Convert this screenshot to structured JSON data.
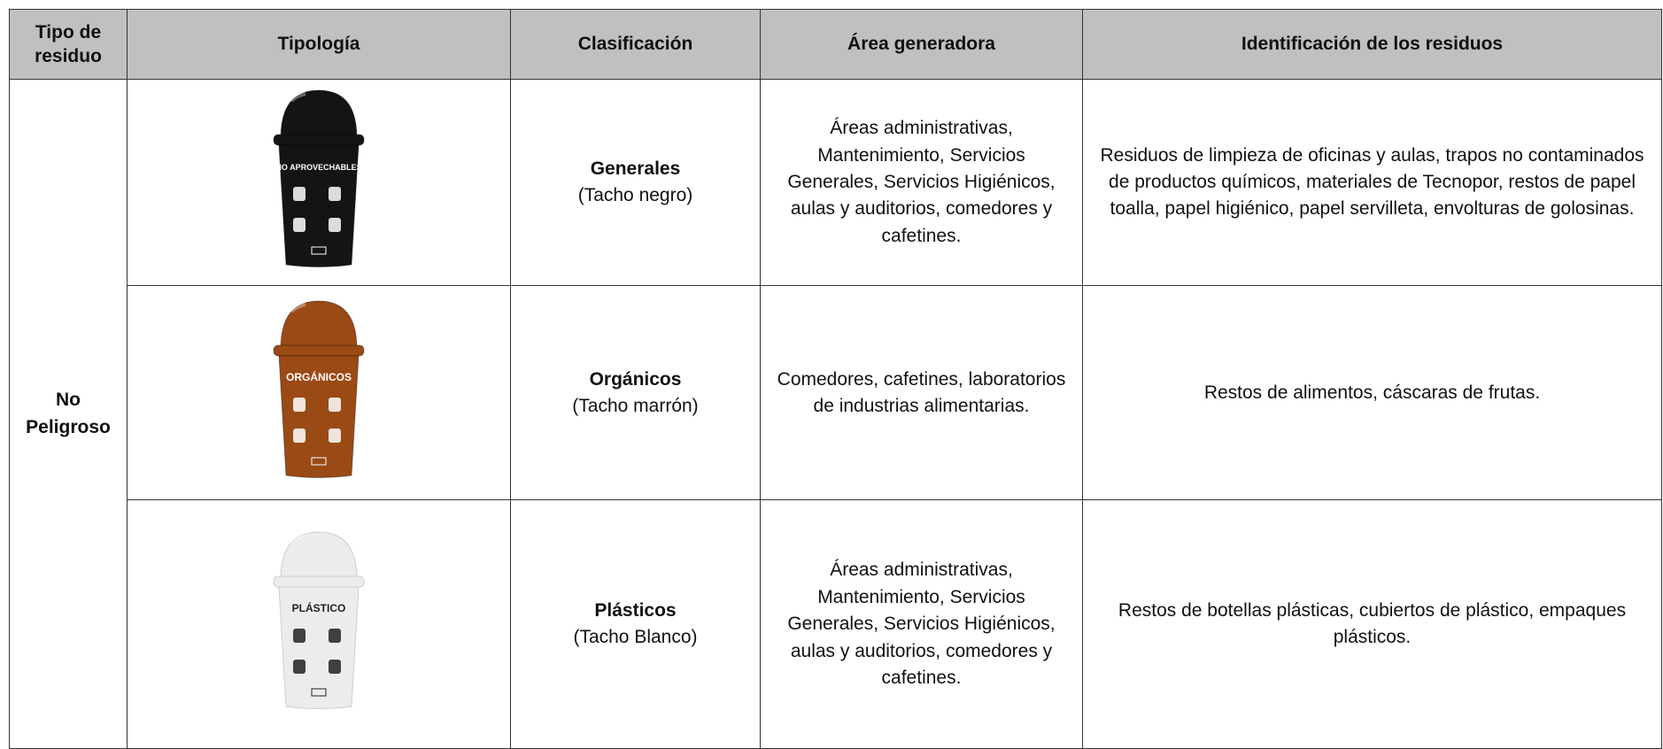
{
  "table": {
    "header": [
      "Tipo de residuo",
      "Tipología",
      "Clasificación",
      "Área generadora",
      "Identificación de los residuos"
    ],
    "tipo_residuo": "No Peligroso",
    "rows": [
      {
        "bin_label": "NO APROVECHABLES",
        "bin_color": "#141414",
        "bin_text_color": "#ffffff",
        "clasificacion": "Generales",
        "tacho": "(Tacho negro)",
        "area": "Áreas administrativas, Mantenimiento, Servicios Generales, Servicios Higiénicos, aulas y auditorios, comedores y cafetines.",
        "identificacion": "Residuos de limpieza de oficinas y aulas, trapos no contaminados de productos químicos, materiales de Tecnopor, restos de papel toalla, papel higiénico, papel servilleta, envolturas de golosinas."
      },
      {
        "bin_label": "ORGÁNICOS",
        "bin_color": "#9a4a14",
        "bin_text_color": "#ffffff",
        "clasificacion": "Orgánicos",
        "tacho": "(Tacho marrón)",
        "area": "Comedores, cafetines, laboratorios de industrias alimentarias.",
        "identificacion": "Restos de alimentos, cáscaras de frutas."
      },
      {
        "bin_label": "PLÁSTICO",
        "bin_color": "#ececec",
        "bin_text_color": "#222222",
        "clasificacion": "Plásticos",
        "tacho": "(Tacho Blanco)",
        "area": "Áreas administrativas, Mantenimiento, Servicios Generales, Servicios Higiénicos, aulas y auditorios, comedores y cafetines.",
        "identificacion": "Restos de botellas plásticas, cubiertos de plástico, empaques plásticos."
      }
    ]
  }
}
